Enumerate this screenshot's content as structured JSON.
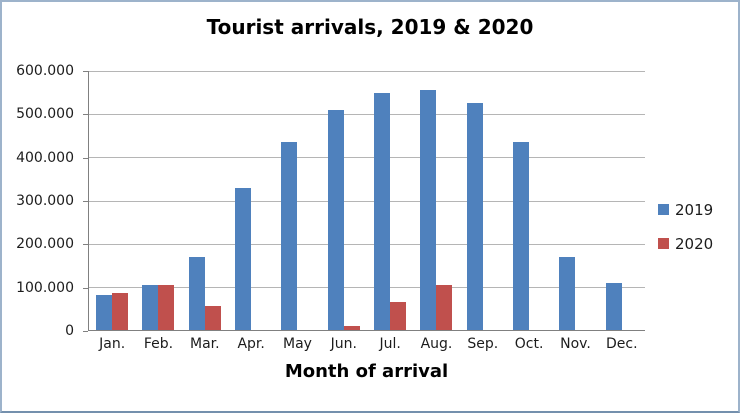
{
  "frame": {
    "border_color": "#9db3cb",
    "background": "#ffffff"
  },
  "chart_data": {
    "type": "bar",
    "title": "Tourist arrivals, 2019 & 2020",
    "xlabel": "Month of arrival",
    "ylabel": "",
    "categories": [
      "Jan.",
      "Feb.",
      "Mar.",
      "Apr.",
      "May",
      "Jun.",
      "Jul.",
      "Aug.",
      "Sep.",
      "Oct.",
      "Nov.",
      "Dec."
    ],
    "series": [
      {
        "name": "2019",
        "color": "#4f81bd",
        "values": [
          80000,
          105000,
          170000,
          330000,
          435000,
          510000,
          550000,
          555000,
          525000,
          435000,
          170000,
          110000
        ]
      },
      {
        "name": "2020",
        "color": "#c0504d",
        "values": [
          85000,
          105000,
          55000,
          0,
          0,
          10000,
          65000,
          105000,
          0,
          0,
          0,
          0
        ]
      }
    ],
    "ylim": [
      0,
      600000
    ],
    "ytick_step": 100000,
    "ytick_labels": [
      "600.000",
      "500.000",
      "400.000",
      "300.000",
      "200.000",
      "100.000",
      "0"
    ],
    "grid": true,
    "gridline_color": "#b5b5b5",
    "axis_line_color": "#808080",
    "legend_position": "right"
  }
}
